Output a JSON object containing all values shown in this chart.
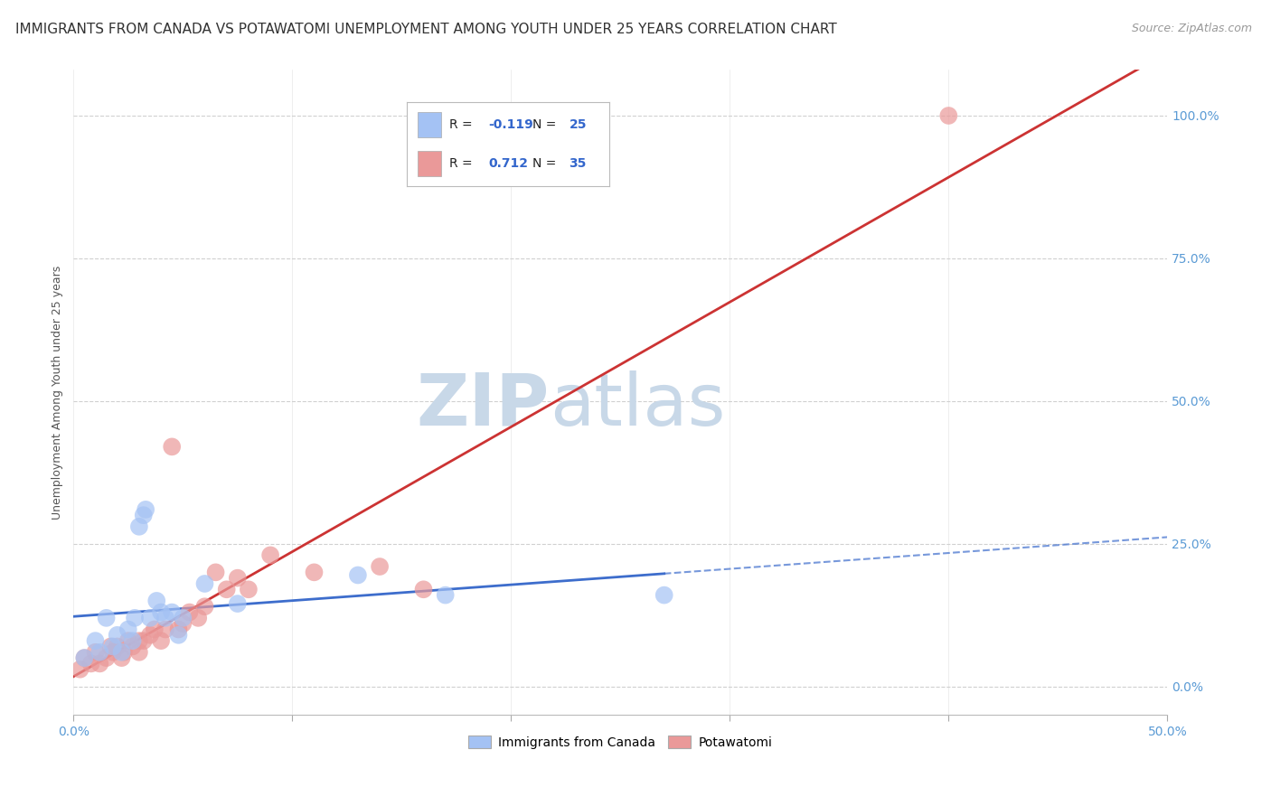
{
  "title": "IMMIGRANTS FROM CANADA VS POTAWATOMI UNEMPLOYMENT AMONG YOUTH UNDER 25 YEARS CORRELATION CHART",
  "source": "Source: ZipAtlas.com",
  "ylabel": "Unemployment Among Youth under 25 years",
  "xlim": [
    0.0,
    0.5
  ],
  "ylim": [
    -0.05,
    1.08
  ],
  "yticks": [
    0.0,
    0.25,
    0.5,
    0.75,
    1.0
  ],
  "ytick_labels": [
    "0.0%",
    "25.0%",
    "50.0%",
    "75.0%",
    "100.0%"
  ],
  "xticks": [
    0.0,
    0.1,
    0.2,
    0.3,
    0.4,
    0.5
  ],
  "xtick_labels": [
    "0.0%",
    "",
    "",
    "",
    "",
    "50.0%"
  ],
  "background_color": "#ffffff",
  "blue_R": -0.119,
  "blue_N": 25,
  "pink_R": 0.712,
  "pink_N": 35,
  "blue_color": "#a4c2f4",
  "pink_color": "#ea9999",
  "blue_line_color": "#3d6dcc",
  "pink_line_color": "#cc3333",
  "grid_color": "#d0d0d0",
  "title_fontsize": 11,
  "axis_label_fontsize": 9,
  "tick_fontsize": 10,
  "blue_scatter_x": [
    0.005,
    0.01,
    0.012,
    0.015,
    0.018,
    0.02,
    0.022,
    0.025,
    0.027,
    0.028,
    0.03,
    0.032,
    0.033,
    0.035,
    0.038,
    0.04,
    0.042,
    0.045,
    0.048,
    0.05,
    0.06,
    0.075,
    0.13,
    0.17,
    0.27
  ],
  "blue_scatter_y": [
    0.05,
    0.08,
    0.06,
    0.12,
    0.07,
    0.09,
    0.06,
    0.1,
    0.08,
    0.12,
    0.28,
    0.3,
    0.31,
    0.12,
    0.15,
    0.13,
    0.12,
    0.13,
    0.09,
    0.12,
    0.18,
    0.145,
    0.195,
    0.16,
    0.16
  ],
  "pink_scatter_x": [
    0.003,
    0.005,
    0.008,
    0.01,
    0.012,
    0.015,
    0.017,
    0.018,
    0.02,
    0.022,
    0.023,
    0.025,
    0.027,
    0.03,
    0.03,
    0.032,
    0.035,
    0.037,
    0.04,
    0.042,
    0.045,
    0.048,
    0.05,
    0.053,
    0.057,
    0.06,
    0.065,
    0.07,
    0.075,
    0.08,
    0.09,
    0.11,
    0.14,
    0.16,
    0.4
  ],
  "pink_scatter_y": [
    0.03,
    0.05,
    0.04,
    0.06,
    0.04,
    0.05,
    0.07,
    0.06,
    0.07,
    0.05,
    0.06,
    0.08,
    0.07,
    0.06,
    0.08,
    0.08,
    0.09,
    0.1,
    0.08,
    0.1,
    0.42,
    0.1,
    0.11,
    0.13,
    0.12,
    0.14,
    0.2,
    0.17,
    0.19,
    0.17,
    0.23,
    0.2,
    0.21,
    0.17,
    1.0
  ],
  "watermark_zip_color": "#c8d8e8",
  "watermark_atlas_color": "#c8d8e8"
}
